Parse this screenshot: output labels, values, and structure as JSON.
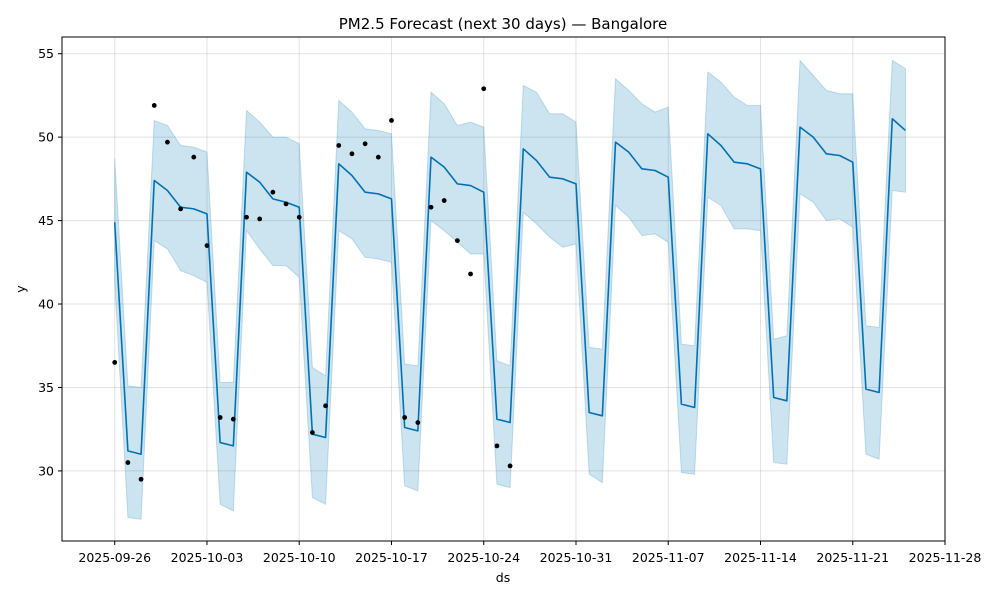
{
  "chart_data": {
    "type": "line",
    "title": "PM2.5 Forecast (next 30 days) — Bangalore",
    "xlabel": "ds",
    "ylabel": "y",
    "x_range": [
      "2025-09-22",
      "2025-11-28"
    ],
    "ylim": [
      25.8,
      56
    ],
    "grid": true,
    "x_ticks": [
      "2025-09-26",
      "2025-10-03",
      "2025-10-10",
      "2025-10-17",
      "2025-10-24",
      "2025-10-31",
      "2025-11-07",
      "2025-11-14",
      "2025-11-21",
      "2025-11-28"
    ],
    "y_ticks": [
      30,
      35,
      40,
      45,
      50,
      55
    ],
    "colors": {
      "forecast": "#0072B2",
      "interval": "#0072B2",
      "actual": "#000000"
    },
    "series": [
      {
        "kind": "forecast",
        "points": [
          [
            "2025-09-26",
            44.9
          ],
          [
            "2025-09-27",
            31.2
          ],
          [
            "2025-09-28",
            31.0
          ],
          [
            "2025-09-29",
            47.4
          ],
          [
            "2025-09-30",
            46.8
          ],
          [
            "2025-10-01",
            45.8
          ],
          [
            "2025-10-02",
            45.7
          ],
          [
            "2025-10-03",
            45.4
          ],
          [
            "2025-10-04",
            31.7
          ],
          [
            "2025-10-05",
            31.5
          ],
          [
            "2025-10-06",
            47.9
          ],
          [
            "2025-10-07",
            47.3
          ],
          [
            "2025-10-08",
            46.3
          ],
          [
            "2025-10-09",
            46.1
          ],
          [
            "2025-10-10",
            45.8
          ],
          [
            "2025-10-11",
            32.2
          ],
          [
            "2025-10-12",
            32.0
          ],
          [
            "2025-10-13",
            48.4
          ],
          [
            "2025-10-14",
            47.7
          ],
          [
            "2025-10-15",
            46.7
          ],
          [
            "2025-10-16",
            46.6
          ],
          [
            "2025-10-17",
            46.3
          ],
          [
            "2025-10-18",
            32.6
          ],
          [
            "2025-10-19",
            32.4
          ],
          [
            "2025-10-20",
            48.8
          ],
          [
            "2025-10-21",
            48.2
          ],
          [
            "2025-10-22",
            47.2
          ],
          [
            "2025-10-23",
            47.1
          ],
          [
            "2025-10-24",
            46.7
          ],
          [
            "2025-10-25",
            33.1
          ],
          [
            "2025-10-26",
            32.9
          ],
          [
            "2025-10-27",
            49.3
          ],
          [
            "2025-10-28",
            48.6
          ],
          [
            "2025-10-29",
            47.6
          ],
          [
            "2025-10-30",
            47.5
          ],
          [
            "2025-10-31",
            47.2
          ],
          [
            "2025-11-01",
            33.5
          ],
          [
            "2025-11-02",
            33.3
          ],
          [
            "2025-11-03",
            49.7
          ],
          [
            "2025-11-04",
            49.1
          ],
          [
            "2025-11-05",
            48.1
          ],
          [
            "2025-11-06",
            48.0
          ],
          [
            "2025-11-07",
            47.6
          ],
          [
            "2025-11-08",
            34.0
          ],
          [
            "2025-11-09",
            33.8
          ],
          [
            "2025-11-10",
            50.2
          ],
          [
            "2025-11-11",
            49.5
          ],
          [
            "2025-11-12",
            48.5
          ],
          [
            "2025-11-13",
            48.4
          ],
          [
            "2025-11-14",
            48.1
          ],
          [
            "2025-11-15",
            34.4
          ],
          [
            "2025-11-16",
            34.2
          ],
          [
            "2025-11-17",
            50.6
          ],
          [
            "2025-11-18",
            50.0
          ],
          [
            "2025-11-19",
            49.0
          ],
          [
            "2025-11-20",
            48.9
          ],
          [
            "2025-11-21",
            48.5
          ],
          [
            "2025-11-22",
            34.9
          ],
          [
            "2025-11-23",
            34.7
          ],
          [
            "2025-11-24",
            51.1
          ],
          [
            "2025-11-25",
            50.4
          ]
        ]
      },
      {
        "kind": "interval",
        "points": [
          [
            "2025-09-26",
            41.3,
            48.7
          ],
          [
            "2025-09-27",
            27.2,
            35.1
          ],
          [
            "2025-09-28",
            27.1,
            35.0
          ],
          [
            "2025-09-29",
            43.8,
            51.0
          ],
          [
            "2025-09-30",
            43.3,
            50.7
          ],
          [
            "2025-10-01",
            42.0,
            49.5
          ],
          [
            "2025-10-02",
            41.7,
            49.4
          ],
          [
            "2025-10-03",
            41.3,
            49.1
          ],
          [
            "2025-10-04",
            28.0,
            35.3
          ],
          [
            "2025-10-05",
            27.6,
            35.3
          ],
          [
            "2025-10-06",
            44.4,
            51.6
          ],
          [
            "2025-10-07",
            43.3,
            50.9
          ],
          [
            "2025-10-08",
            42.3,
            50.0
          ],
          [
            "2025-10-09",
            42.3,
            50.0
          ],
          [
            "2025-10-10",
            41.6,
            49.6
          ],
          [
            "2025-10-11",
            28.4,
            36.2
          ],
          [
            "2025-10-12",
            28.0,
            35.7
          ],
          [
            "2025-10-13",
            44.4,
            52.2
          ],
          [
            "2025-10-14",
            43.9,
            51.5
          ],
          [
            "2025-10-15",
            42.8,
            50.5
          ],
          [
            "2025-10-16",
            42.7,
            50.4
          ],
          [
            "2025-10-17",
            42.5,
            50.2
          ],
          [
            "2025-10-18",
            29.1,
            36.4
          ],
          [
            "2025-10-19",
            28.8,
            36.3
          ],
          [
            "2025-10-20",
            45.0,
            52.7
          ],
          [
            "2025-10-21",
            44.4,
            52.0
          ],
          [
            "2025-10-22",
            43.7,
            50.7
          ],
          [
            "2025-10-23",
            43.0,
            50.9
          ],
          [
            "2025-10-24",
            43.0,
            50.6
          ],
          [
            "2025-10-25",
            29.2,
            36.6
          ],
          [
            "2025-10-26",
            29.0,
            36.3
          ],
          [
            "2025-10-27",
            45.5,
            53.1
          ],
          [
            "2025-10-28",
            44.8,
            52.7
          ],
          [
            "2025-10-29",
            44.0,
            51.4
          ],
          [
            "2025-10-30",
            43.4,
            51.4
          ],
          [
            "2025-10-31",
            43.6,
            50.9
          ],
          [
            "2025-11-01",
            29.8,
            37.4
          ],
          [
            "2025-11-02",
            29.3,
            37.3
          ],
          [
            "2025-11-03",
            45.9,
            53.5
          ],
          [
            "2025-11-04",
            45.2,
            52.8
          ],
          [
            "2025-11-05",
            44.1,
            52.0
          ],
          [
            "2025-11-06",
            44.2,
            51.5
          ],
          [
            "2025-11-07",
            43.7,
            51.8
          ],
          [
            "2025-11-08",
            29.9,
            37.6
          ],
          [
            "2025-11-09",
            29.8,
            37.5
          ],
          [
            "2025-11-10",
            46.4,
            53.9
          ],
          [
            "2025-11-11",
            45.9,
            53.3
          ],
          [
            "2025-11-12",
            44.5,
            52.4
          ],
          [
            "2025-11-13",
            44.5,
            51.9
          ],
          [
            "2025-11-14",
            44.4,
            51.9
          ],
          [
            "2025-11-15",
            30.5,
            37.9
          ],
          [
            "2025-11-16",
            30.4,
            38.1
          ],
          [
            "2025-11-17",
            46.6,
            54.6
          ],
          [
            "2025-11-18",
            46.1,
            53.7
          ],
          [
            "2025-11-19",
            45.0,
            52.8
          ],
          [
            "2025-11-20",
            45.1,
            52.6
          ],
          [
            "2025-11-21",
            44.6,
            52.6
          ],
          [
            "2025-11-22",
            31.0,
            38.7
          ],
          [
            "2025-11-23",
            30.7,
            38.6
          ],
          [
            "2025-11-24",
            46.8,
            54.6
          ],
          [
            "2025-11-25",
            46.7,
            54.1
          ]
        ]
      },
      {
        "kind": "actual",
        "points": [
          [
            "2025-09-26",
            36.5
          ],
          [
            "2025-09-27",
            30.5
          ],
          [
            "2025-09-28",
            29.5
          ],
          [
            "2025-09-29",
            51.9
          ],
          [
            "2025-09-30",
            49.7
          ],
          [
            "2025-10-01",
            45.7
          ],
          [
            "2025-10-02",
            48.8
          ],
          [
            "2025-10-03",
            43.5
          ],
          [
            "2025-10-04",
            33.2
          ],
          [
            "2025-10-05",
            33.1
          ],
          [
            "2025-10-06",
            45.2
          ],
          [
            "2025-10-07",
            45.1
          ],
          [
            "2025-10-08",
            46.7
          ],
          [
            "2025-10-09",
            46.0
          ],
          [
            "2025-10-10",
            45.2
          ],
          [
            "2025-10-11",
            32.3
          ],
          [
            "2025-10-12",
            33.9
          ],
          [
            "2025-10-13",
            49.5
          ],
          [
            "2025-10-14",
            49.0
          ],
          [
            "2025-10-15",
            49.6
          ],
          [
            "2025-10-16",
            48.8
          ],
          [
            "2025-10-17",
            51.0
          ],
          [
            "2025-10-18",
            33.2
          ],
          [
            "2025-10-19",
            32.9
          ],
          [
            "2025-10-20",
            45.8
          ],
          [
            "2025-10-21",
            46.2
          ],
          [
            "2025-10-22",
            43.8
          ],
          [
            "2025-10-23",
            41.8
          ],
          [
            "2025-10-24",
            52.9
          ],
          [
            "2025-10-25",
            31.5
          ],
          [
            "2025-10-26",
            30.3
          ]
        ]
      }
    ]
  }
}
